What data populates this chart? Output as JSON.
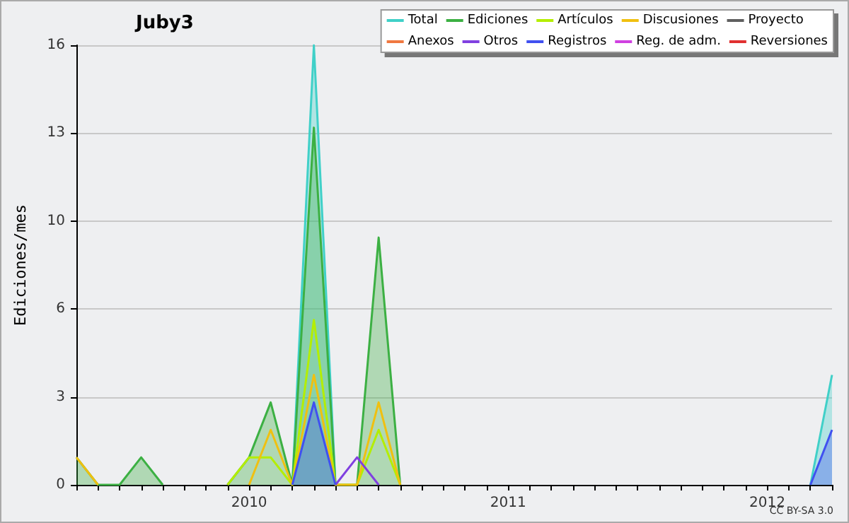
{
  "chart_data": {
    "type": "area",
    "title": "Juby3",
    "ylabel": "Ediciones/mes",
    "categories": [
      null,
      null,
      null,
      null,
      null,
      null,
      null,
      null,
      "2010",
      null,
      null,
      null,
      null,
      null,
      null,
      null,
      null,
      null,
      null,
      null,
      "2011",
      null,
      null,
      null,
      null,
      null,
      null,
      null,
      null,
      null,
      null,
      null,
      "2012",
      null,
      null,
      null
    ],
    "series": [
      {
        "name": "Total",
        "color": "#40d0c8",
        "values": [
          null,
          null,
          null,
          null,
          null,
          null,
          null,
          null,
          null,
          null,
          0,
          16,
          0,
          null,
          null,
          null,
          null,
          null,
          null,
          null,
          null,
          null,
          null,
          null,
          null,
          null,
          null,
          null,
          null,
          null,
          null,
          null,
          null,
          null,
          0,
          4
        ]
      },
      {
        "name": "Ediciones",
        "color": "#3cb043",
        "values": [
          1,
          0,
          0,
          1,
          0,
          null,
          null,
          0,
          1,
          3,
          0,
          13,
          0,
          0,
          9,
          0,
          null,
          null,
          null,
          null,
          null,
          null,
          null,
          null,
          null,
          null,
          null,
          null,
          null,
          null,
          null,
          null,
          null,
          null,
          null,
          null
        ]
      },
      {
        "name": "Artículos",
        "type": "line",
        "color": "#b4ee00",
        "values": [
          null,
          null,
          null,
          null,
          null,
          null,
          null,
          0,
          1,
          1,
          0,
          6,
          0,
          0,
          2,
          0,
          null,
          null,
          null,
          null,
          null,
          null,
          null,
          null,
          null,
          null,
          null,
          null,
          null,
          null,
          null,
          null,
          null,
          null,
          null,
          null
        ]
      },
      {
        "name": "Discusiones",
        "type": "line",
        "color": "#f0c010",
        "values": [
          1,
          0,
          null,
          null,
          null,
          null,
          null,
          null,
          0,
          2,
          0,
          4,
          0,
          0,
          3,
          0,
          null,
          null,
          null,
          null,
          null,
          null,
          null,
          null,
          null,
          null,
          null,
          null,
          null,
          null,
          null,
          null,
          null,
          null,
          null,
          null
        ]
      },
      {
        "name": "Proyecto",
        "type": "line",
        "color": "#606060",
        "values": [
          null,
          null,
          null,
          null,
          null,
          null,
          null,
          null,
          null,
          null,
          null,
          null,
          null,
          null,
          null,
          null,
          null,
          null,
          null,
          null,
          null,
          null,
          null,
          null,
          null,
          null,
          null,
          null,
          null,
          null,
          null,
          null,
          null,
          null,
          null,
          null
        ]
      },
      {
        "name": "Anexos",
        "type": "line",
        "color": "#f07840",
        "values": [
          null,
          null,
          null,
          null,
          null,
          null,
          null,
          null,
          null,
          null,
          null,
          null,
          null,
          null,
          null,
          null,
          null,
          null,
          null,
          null,
          null,
          null,
          null,
          null,
          null,
          null,
          null,
          null,
          null,
          null,
          null,
          null,
          null,
          null,
          null,
          null
        ]
      },
      {
        "name": "Otros",
        "type": "line",
        "color": "#8040e0",
        "values": [
          null,
          null,
          null,
          null,
          null,
          null,
          null,
          null,
          null,
          null,
          null,
          null,
          0,
          1,
          0,
          null,
          null,
          null,
          null,
          null,
          null,
          null,
          null,
          null,
          null,
          null,
          null,
          null,
          null,
          null,
          null,
          null,
          null,
          null,
          null,
          null
        ]
      },
      {
        "name": "Registros",
        "color": "#4050f0",
        "values": [
          null,
          null,
          null,
          null,
          null,
          null,
          null,
          null,
          null,
          null,
          0,
          3,
          0,
          null,
          null,
          null,
          null,
          null,
          null,
          null,
          null,
          null,
          null,
          null,
          null,
          null,
          null,
          null,
          null,
          null,
          null,
          null,
          null,
          null,
          0,
          2
        ]
      },
      {
        "name": "Reg. de adm.",
        "type": "line",
        "color": "#d040e0",
        "values": [
          null,
          null,
          null,
          null,
          null,
          null,
          null,
          null,
          null,
          null,
          null,
          null,
          null,
          null,
          null,
          null,
          null,
          null,
          null,
          null,
          null,
          null,
          null,
          null,
          null,
          null,
          null,
          null,
          null,
          null,
          null,
          null,
          null,
          null,
          null,
          null
        ]
      },
      {
        "name": "Reversiones",
        "type": "line",
        "color": "#e03030",
        "values": [
          null,
          null,
          null,
          null,
          null,
          null,
          null,
          null,
          null,
          null,
          null,
          null,
          null,
          null,
          null,
          null,
          null,
          null,
          null,
          null,
          null,
          null,
          null,
          null,
          null,
          null,
          null,
          null,
          null,
          null,
          null,
          null,
          null,
          null,
          null,
          null
        ]
      }
    ],
    "ylim": [
      0,
      16
    ],
    "yticks": [
      0,
      {
        "value": 3.2,
        "label": "3"
      },
      {
        "value": 6.4,
        "label": "6"
      },
      {
        "value": 9.6,
        "label": "10"
      },
      {
        "value": 12.8,
        "label": "13"
      },
      16
    ],
    "grid": "y",
    "legend": "top right",
    "marker": "none",
    "annotations": [
      "CC BY-SA 3.0"
    ]
  }
}
